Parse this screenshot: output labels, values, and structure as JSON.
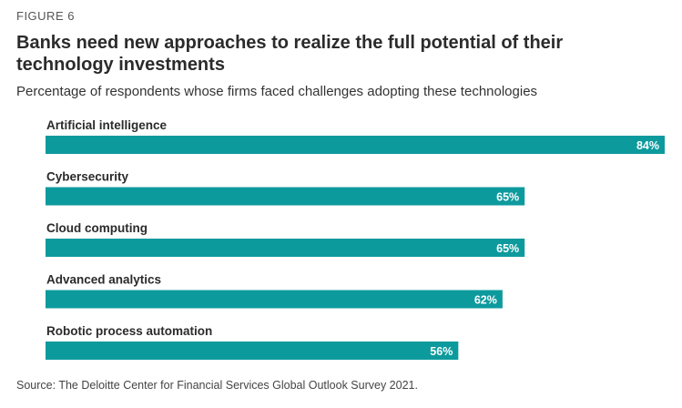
{
  "figure_label": "FIGURE 6",
  "title": "Banks need new approaches to realize the full potential of their technology investments",
  "subtitle": "Percentage of respondents whose firms faced challenges adopting these technologies",
  "source": "Source: The Deloitte Center for Financial Services Global Outlook Survey 2021.",
  "colors": {
    "bar": "#0d9a9d",
    "value_text": "#ffffff",
    "category_text": "#2b2b2b"
  },
  "chart_data": {
    "type": "bar",
    "orientation": "horizontal",
    "categories": [
      "Artificial intelligence",
      "Cybersecurity",
      "Cloud computing",
      "Advanced analytics",
      "Robotic process automation"
    ],
    "values": [
      84,
      65,
      65,
      62,
      56
    ],
    "value_labels": [
      "84%",
      "65%",
      "65%",
      "62%",
      "56%"
    ],
    "xlim": [
      0,
      84
    ],
    "grid": false,
    "legend": "none"
  }
}
